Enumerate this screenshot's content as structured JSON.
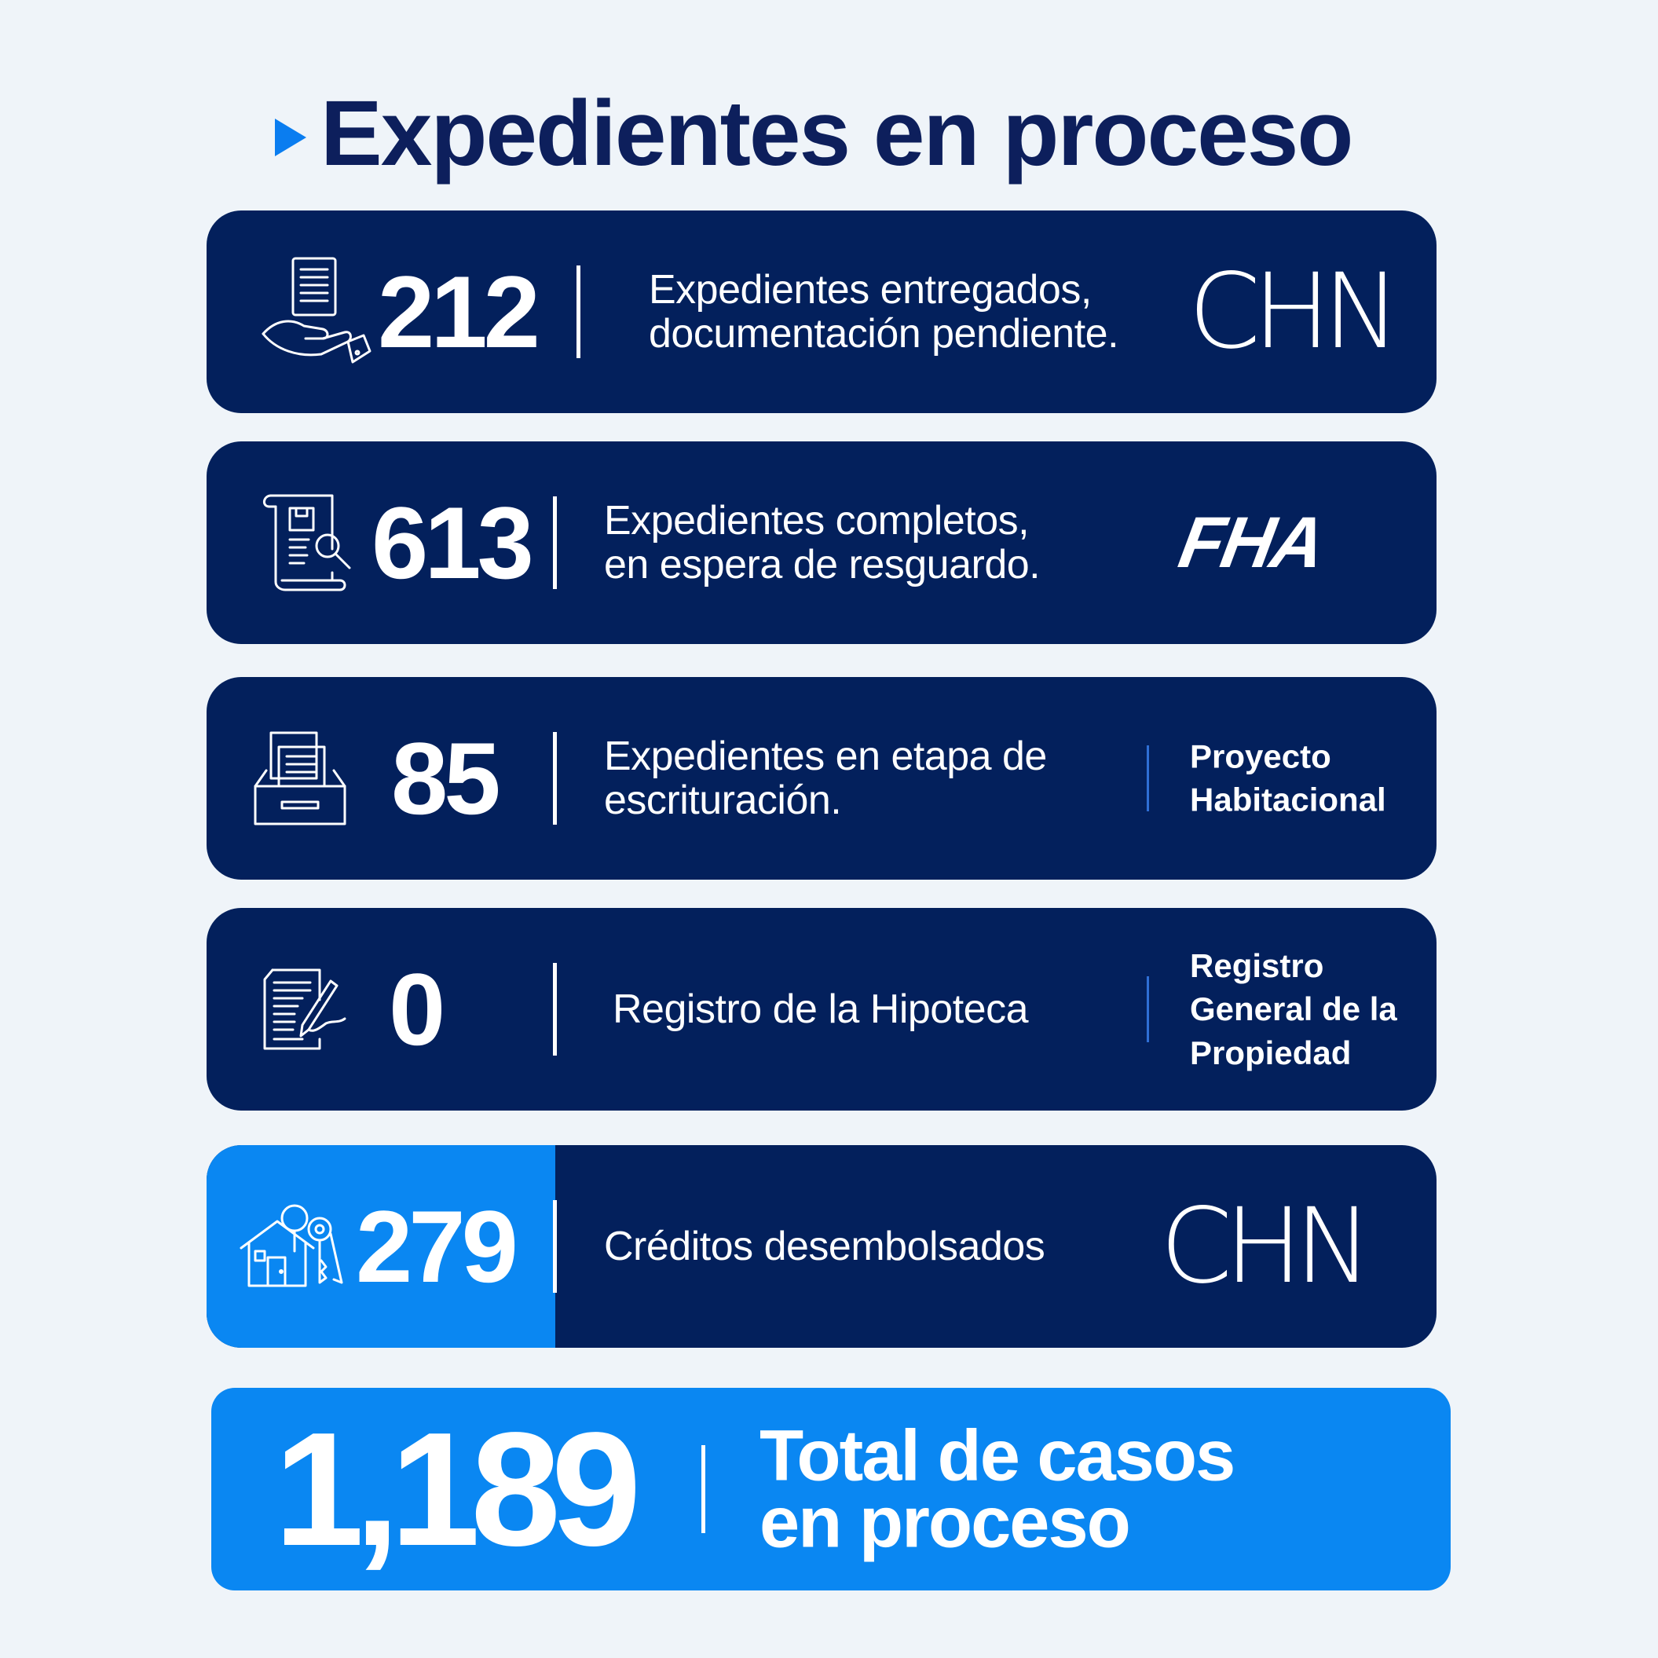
{
  "title": "Expedientes en proceso",
  "cards": [
    {
      "number": "212",
      "description": [
        "Expedientes entregados,",
        "documentación pendiente."
      ],
      "icon": "hand-document-icon",
      "brand": "CHN"
    },
    {
      "number": "613",
      "description": [
        "Expedientes completos,",
        "en espera de resguardo."
      ],
      "icon": "document-search-icon",
      "brand": "FHA"
    },
    {
      "number": "85",
      "description": [
        "Expedientes en etapa de",
        "escrituración."
      ],
      "icon": "file-drawer-icon",
      "brand_lines": [
        "Proyecto",
        "Habitacional"
      ]
    },
    {
      "number": "0",
      "description": [
        "Registro de la Hipoteca"
      ],
      "icon": "document-signature-icon",
      "brand_lines": [
        "Registro",
        "General de la",
        "Propiedad"
      ]
    },
    {
      "number": "279",
      "description": [
        "Créditos desembolsados"
      ],
      "icon": "house-keys-icon",
      "brand": "CHN"
    }
  ],
  "total": {
    "number": "1,189",
    "label": [
      "Total de casos",
      "en proceso"
    ]
  },
  "colors": {
    "background": "#eff4f9",
    "navy": "#03205c",
    "accent_blue": "#0a87f2",
    "title_navy": "#0d1f5c"
  }
}
